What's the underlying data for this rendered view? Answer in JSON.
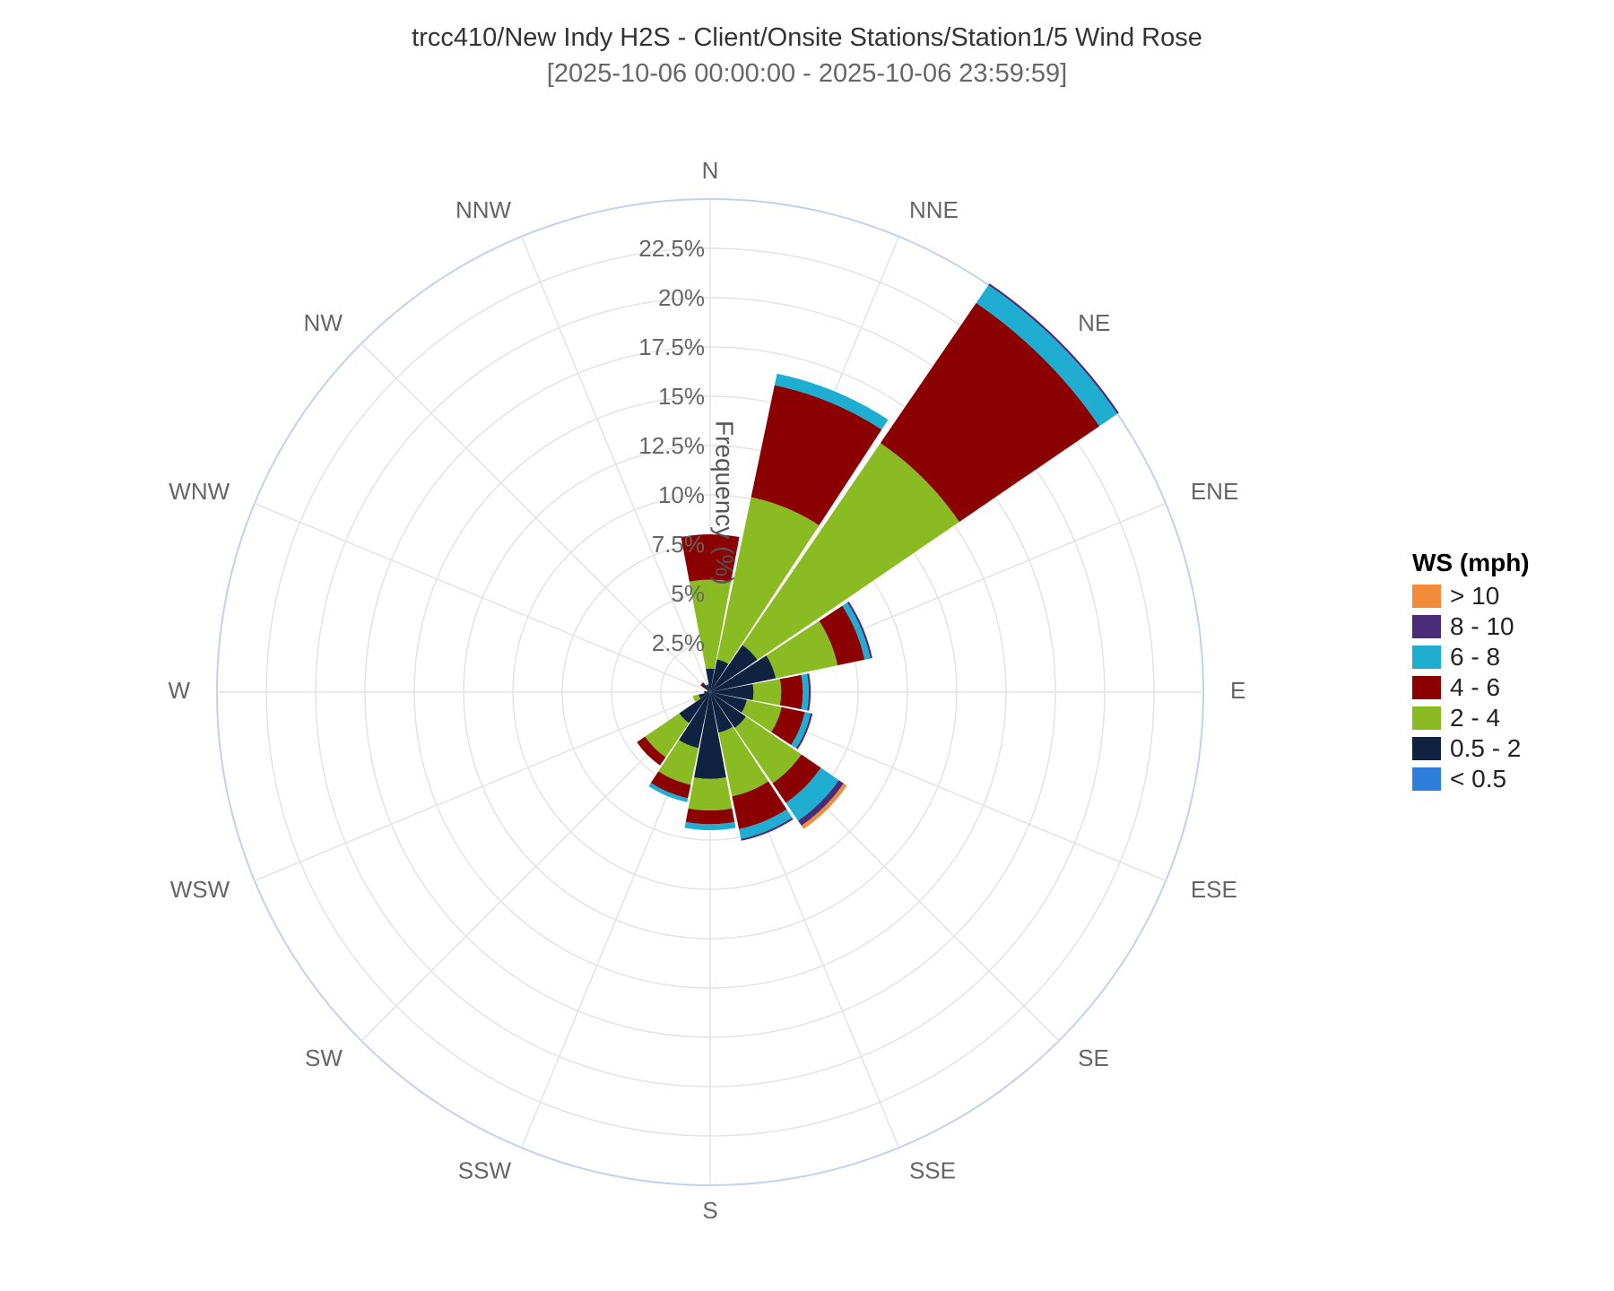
{
  "chart_data": {
    "type": "windrose",
    "title": "trcc410/New Indy H2S - Client/Onsite Stations/Station1/5 Wind Rose",
    "subtitle": "[2025-10-06 00:00:00 - 2025-10-06 23:59:59]",
    "radial_axis_label": "Frequency (%)",
    "radial_ticks": [
      "2.5%",
      "5%",
      "7.5%",
      "10%",
      "12.5%",
      "15%",
      "17.5%",
      "20%",
      "22.5%"
    ],
    "rmax": 25,
    "directions": [
      "N",
      "NNE",
      "NE",
      "ENE",
      "E",
      "ESE",
      "SE",
      "SSE",
      "S",
      "SSW",
      "SW",
      "WSW",
      "W",
      "WNW",
      "NW",
      "NNW"
    ],
    "legend_title": "WS (mph)",
    "series": [
      {
        "name": "< 0.5",
        "color": "#2E7FDB",
        "values": [
          0,
          0,
          0,
          0,
          0,
          0,
          0,
          0,
          0,
          0,
          0,
          0,
          0,
          0,
          0,
          0
        ]
      },
      {
        "name": "0.5 - 2",
        "color": "#0F2340",
        "values": [
          1.2,
          1.7,
          2.9,
          3.4,
          2.2,
          1.9,
          2.2,
          2.1,
          4.4,
          2.9,
          1.9,
          0.6,
          0.3,
          0.15,
          0.5,
          0.4
        ]
      },
      {
        "name": "2 - 4",
        "color": "#8ABB22",
        "values": [
          4.5,
          8.4,
          12.4,
          3.2,
          1.4,
          1.8,
          3.4,
          3.3,
          1.6,
          1.9,
          2.1,
          0.3,
          0,
          0,
          0,
          0
        ]
      },
      {
        "name": "4 - 6",
        "color": "#8B0000",
        "values": [
          2.3,
          5.8,
          8.6,
          1.4,
          1.1,
          1.2,
          1.2,
          1.7,
          0.7,
          0.7,
          0.5,
          0,
          0,
          0,
          0.1,
          0
        ]
      },
      {
        "name": "6 - 8",
        "color": "#1FAED2",
        "values": [
          0,
          0.6,
          1.1,
          0.3,
          0.3,
          0.3,
          1.1,
          0.5,
          0.3,
          0.2,
          0,
          0,
          0,
          0,
          0,
          0
        ]
      },
      {
        "name": "8 - 10",
        "color": "#4A2B78",
        "values": [
          0,
          0,
          0.1,
          0.1,
          0.1,
          0.1,
          0.3,
          0.1,
          0,
          0,
          0,
          0,
          0,
          0,
          0,
          0
        ]
      },
      {
        "name": "> 10",
        "color": "#F28C3A",
        "values": [
          0,
          0,
          0,
          0,
          0,
          0,
          0.2,
          0,
          0,
          0,
          0,
          0,
          0,
          0,
          0,
          0
        ]
      }
    ],
    "legend": [
      {
        "label": "> 10",
        "color": "#F28C3A"
      },
      {
        "label": "8 - 10",
        "color": "#4A2B78"
      },
      {
        "label": "6 - 8",
        "color": "#1FAED2"
      },
      {
        "label": "4 - 6",
        "color": "#8B0000"
      },
      {
        "label": "2 - 4",
        "color": "#8ABB22"
      },
      {
        "label": "0.5 - 2",
        "color": "#0F2340"
      },
      {
        "label": "< 0.5",
        "color": "#2E7FDB"
      }
    ],
    "legend_placement": "right",
    "grid": true
  }
}
